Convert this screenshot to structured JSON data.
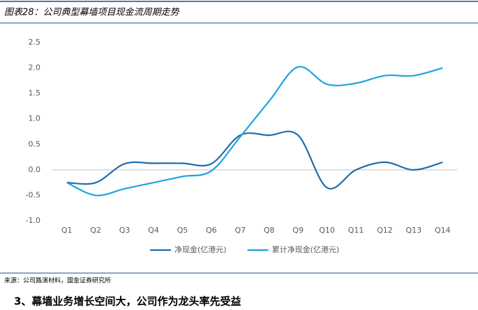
{
  "header": {
    "title": "图表28：公司典型幕墙项目现金流周期走势"
  },
  "chart_data": {
    "type": "line",
    "categories": [
      "Q1",
      "Q2",
      "Q3",
      "Q4",
      "Q5",
      "Q6",
      "Q7",
      "Q8",
      "Q9",
      "Q10",
      "Q11",
      "Q12",
      "Q13",
      "Q14"
    ],
    "series": [
      {
        "name": "净现金(亿港元)",
        "color": "#1f6dab",
        "values": [
          -0.25,
          -0.25,
          0.12,
          0.13,
          0.13,
          0.12,
          0.68,
          0.68,
          0.68,
          -0.35,
          0.0,
          0.15,
          0.0,
          0.15
        ]
      },
      {
        "name": "累计净现金(亿港元)",
        "color": "#1fa3de",
        "values": [
          -0.25,
          -0.5,
          -0.37,
          -0.25,
          -0.13,
          -0.02,
          0.65,
          1.35,
          2.02,
          1.68,
          1.7,
          1.85,
          1.85,
          2.0
        ]
      }
    ],
    "ylim": [
      -1.0,
      2.5
    ],
    "yticks": [
      {
        "value": -1.0,
        "label": "-1.0"
      },
      -0.5,
      {
        "value": 0.0,
        "label": "0.0"
      },
      0.5,
      {
        "value": 1.0,
        "label": "1.0"
      },
      1.5,
      {
        "value": 2.0,
        "label": "2.0"
      },
      2.5
    ],
    "grid": false,
    "smooth": true,
    "legend": "bottom"
  },
  "footer": {
    "source": "来源：公司路演材料，国金证券研究所",
    "next_heading": "3、幕墙业务增长空间大，公司作为龙头率先受益"
  }
}
